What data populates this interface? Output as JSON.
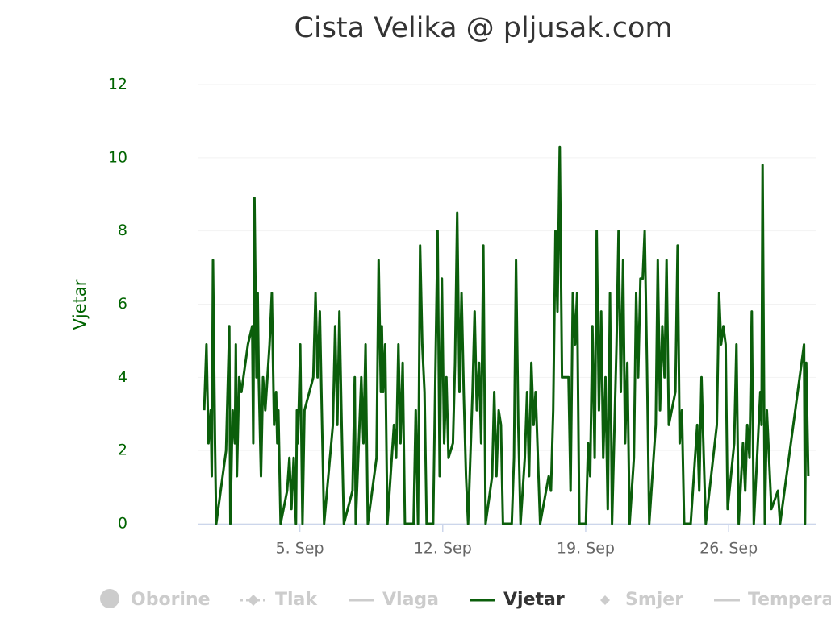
{
  "chart_data": {
    "type": "line",
    "title": "Cista Velika @ pljusak.com",
    "y_axis_title": "Vjetar",
    "xlim": [
      0,
      30.3
    ],
    "xticks": [
      {
        "value": 5,
        "label": "5. Sep"
      },
      {
        "value": 12,
        "label": "12. Sep"
      },
      {
        "value": 19,
        "label": "19. Sep"
      },
      {
        "value": 26,
        "label": "26. Sep"
      }
    ],
    "ylim": [
      0,
      12
    ],
    "yticks": [
      0,
      2,
      4,
      6,
      8,
      10,
      12
    ],
    "grid": true,
    "axis_color": "#006400",
    "x": [
      0.32,
      0.43,
      0.53,
      0.64,
      0.69,
      0.75,
      0.85,
      0.91,
      1.39,
      1.55,
      1.6,
      1.71,
      1.82,
      1.87,
      1.92,
      2.03,
      2.14,
      2.46,
      2.67,
      2.72,
      2.78,
      2.88,
      2.94,
      2.99,
      3.1,
      3.2,
      3.31,
      3.52,
      3.63,
      3.74,
      3.84,
      3.9,
      3.95,
      4.06,
      4.38,
      4.49,
      4.59,
      4.7,
      4.81,
      4.86,
      4.91,
      5.02,
      5.13,
      5.23,
      5.66,
      5.77,
      5.87,
      5.98,
      6.09,
      6.19,
      6.62,
      6.73,
      6.84,
      6.94,
      7.05,
      7.16,
      7.58,
      7.69,
      7.74,
      8.01,
      8.12,
      8.22,
      8.33,
      8.76,
      8.86,
      8.97,
      9.02,
      9.08,
      9.18,
      9.29,
      9.61,
      9.72,
      9.83,
      9.93,
      10.04,
      10.15,
      10.57,
      10.68,
      10.79,
      10.89,
      11.0,
      11.11,
      11.21,
      11.53,
      11.64,
      11.75,
      11.85,
      11.96,
      12.07,
      12.18,
      12.28,
      12.5,
      12.6,
      12.71,
      12.82,
      12.92,
      13.03,
      13.14,
      13.24,
      13.46,
      13.56,
      13.67,
      13.78,
      13.88,
      13.99,
      14.1,
      14.42,
      14.52,
      14.63,
      14.74,
      14.85,
      14.95,
      15.38,
      15.49,
      15.59,
      15.7,
      15.81,
      16.02,
      16.13,
      16.23,
      16.34,
      16.45,
      16.55,
      16.77,
      17.19,
      17.3,
      17.41,
      17.52,
      17.62,
      17.73,
      17.84,
      18.16,
      18.26,
      18.37,
      18.48,
      18.58,
      18.69,
      19.01,
      19.12,
      19.22,
      19.33,
      19.44,
      19.54,
      19.65,
      19.76,
      19.86,
      19.97,
      20.08,
      20.19,
      20.29,
      20.51,
      20.61,
      20.72,
      20.83,
      20.93,
      21.04,
      21.15,
      21.36,
      21.47,
      21.57,
      21.68,
      21.79,
      21.89,
      22.0,
      22.11,
      22.43,
      22.53,
      22.64,
      22.75,
      22.86,
      22.96,
      23.07,
      23.39,
      23.5,
      23.6,
      23.71,
      23.82,
      24.14,
      24.46,
      24.56,
      24.67,
      24.78,
      24.88,
      25.42,
      25.53,
      25.63,
      25.74,
      25.85,
      25.95,
      26.27,
      26.38,
      26.49,
      26.7,
      26.81,
      26.91,
      27.02,
      27.13,
      27.23,
      27.55,
      27.61,
      27.66,
      27.77,
      27.87,
      28.09,
      28.41,
      28.52,
      29.69,
      29.74,
      29.8,
      29.9
    ],
    "series": [
      {
        "name": "Oborine",
        "color": "#cccccc",
        "visible": false,
        "symbol": "circle"
      },
      {
        "name": "Tlak",
        "color": "#cccccc",
        "visible": false,
        "symbol": "dash-diamond"
      },
      {
        "name": "Vlaga",
        "color": "#cccccc",
        "visible": false,
        "symbol": "line"
      },
      {
        "name": "Vjetar",
        "color": "#0b5e0b",
        "visible": true,
        "symbol": "line",
        "values": [
          3.1,
          4.9,
          2.2,
          3.1,
          1.3,
          7.2,
          2.2,
          0,
          2.0,
          5.4,
          0,
          3.1,
          2.2,
          4.9,
          1.3,
          4.0,
          3.6,
          4.9,
          5.4,
          2.2,
          8.9,
          4.0,
          6.3,
          4.0,
          1.3,
          4.0,
          3.1,
          4.9,
          6.3,
          2.7,
          3.6,
          2.2,
          3.1,
          0,
          0.9,
          1.8,
          0.4,
          1.8,
          0,
          3.1,
          2.2,
          4.9,
          0,
          3.1,
          4.0,
          6.3,
          4.0,
          5.8,
          2.7,
          0,
          2.7,
          5.4,
          2.7,
          5.8,
          2.7,
          0,
          0.9,
          4.0,
          0,
          4.0,
          2.2,
          4.9,
          0,
          1.8,
          7.2,
          3.6,
          5.4,
          3.6,
          4.9,
          0,
          2.7,
          1.8,
          4.9,
          2.2,
          4.4,
          0,
          0,
          3.1,
          0,
          7.6,
          4.9,
          3.6,
          0,
          0,
          4.0,
          8.0,
          1.3,
          6.7,
          2.2,
          4.0,
          1.8,
          2.2,
          4.4,
          8.5,
          3.6,
          6.3,
          3.6,
          1.3,
          0,
          3.6,
          5.8,
          3.1,
          4.4,
          2.2,
          7.6,
          0,
          1.3,
          3.6,
          1.3,
          3.1,
          2.7,
          0,
          0,
          1.8,
          7.2,
          2.7,
          0,
          1.8,
          3.6,
          1.3,
          4.4,
          2.7,
          3.6,
          0,
          1.3,
          0.9,
          3.1,
          8.0,
          5.8,
          10.3,
          4.0,
          4.0,
          0.9,
          6.3,
          4.9,
          6.3,
          0,
          0,
          2.2,
          1.3,
          5.4,
          1.8,
          8.0,
          3.1,
          5.8,
          1.8,
          4.0,
          0.4,
          6.3,
          0,
          4.9,
          8.0,
          3.6,
          7.2,
          2.2,
          4.4,
          0,
          1.8,
          6.3,
          4.0,
          6.7,
          6.7,
          8.0,
          4.4,
          0,
          2.7,
          7.2,
          3.1,
          5.4,
          4.0,
          7.2,
          2.7,
          3.6,
          7.6,
          2.2,
          3.1,
          0,
          0,
          2.7,
          0.9,
          4.0,
          1.8,
          0,
          2.7,
          6.3,
          4.9,
          5.4,
          4.9,
          0.4,
          2.2,
          4.9,
          0,
          2.2,
          0.9,
          2.7,
          1.8,
          5.8,
          0,
          3.6,
          2.7,
          9.8,
          0,
          3.1,
          0.4,
          0.9,
          0,
          4.9,
          0,
          4.4,
          1.3
        ]
      },
      {
        "name": "Smjer",
        "color": "#cccccc",
        "visible": false,
        "symbol": "diamond"
      },
      {
        "name": "Temperatura",
        "color": "#cccccc",
        "visible": false,
        "symbol": "line"
      }
    ]
  }
}
